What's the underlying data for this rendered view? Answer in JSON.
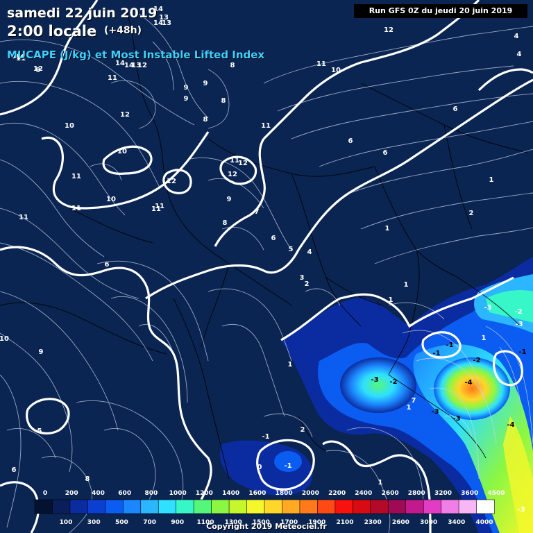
{
  "header": {
    "date": "samedi 22 juin 2019",
    "time": "2:00 locale",
    "step": "(+48h)",
    "parameter": "MUCAPE (J/kg) et Most Instable Lifted Index"
  },
  "run_info": "Run GFS 0Z du jeudi 20 juin 2019",
  "copyright": "Copyright 2019 Meteociel.fr",
  "colors": {
    "background": "#0a2552",
    "contour_thick": "#ffffff",
    "contour_thin": "#c8d4ea",
    "borders": "#000000"
  },
  "colorbar": {
    "top_labels": [
      "0",
      "200",
      "400",
      "600",
      "800",
      "1000",
      "1200",
      "1400",
      "1600",
      "1800",
      "2000",
      "2200",
      "2400",
      "2600",
      "2800",
      "3200",
      "3600",
      "4500"
    ],
    "bottom_labels": [
      "100",
      "300",
      "500",
      "700",
      "900",
      "1100",
      "1300",
      "1500",
      "1700",
      "1900",
      "2100",
      "2300",
      "2600",
      "3000",
      "3400",
      "4000"
    ],
    "colors": [
      "#031231",
      "#0a1e5c",
      "#0b2ca0",
      "#0a3fd0",
      "#0b5cf0",
      "#1c86ff",
      "#2cb6ff",
      "#2fe0ff",
      "#37f7c8",
      "#55f77a",
      "#8bf742",
      "#c6f72a",
      "#f4f72a",
      "#ffd62a",
      "#ffaa22",
      "#ff7a1a",
      "#ff4a14",
      "#f8120f",
      "#d80a12",
      "#b40a28",
      "#a00a55",
      "#c21a8c",
      "#e23cc4",
      "#f07ee6",
      "#f7b6f4",
      "#ffffff"
    ]
  },
  "lifted_index_labels": [
    "14",
    "13",
    "14",
    "13",
    "11",
    "12",
    "10",
    "10",
    "9",
    "14",
    "14",
    "13",
    "12",
    "11",
    "8",
    "9",
    "9",
    "8",
    "9",
    "12",
    "8",
    "11",
    "10",
    "11",
    "10",
    "11",
    "12",
    "12",
    "11",
    "12",
    "11",
    "9",
    "10",
    "11",
    "11",
    "8",
    "7",
    "6",
    "6",
    "5",
    "4",
    "3",
    "2",
    "12",
    "11",
    "10",
    "4",
    "4",
    "6",
    "6",
    "6",
    "1",
    "2",
    "1",
    "1",
    "1",
    "-3",
    "-2",
    "-3",
    "1",
    "-1",
    "-2",
    "-3",
    "-2",
    "-4",
    "-3",
    "-3",
    "-4",
    "1",
    "-1",
    "-1",
    "2",
    "-1",
    "1",
    "0",
    "10",
    "9",
    "5",
    "6",
    "8",
    "7",
    "-3",
    "1",
    "-1"
  ]
}
